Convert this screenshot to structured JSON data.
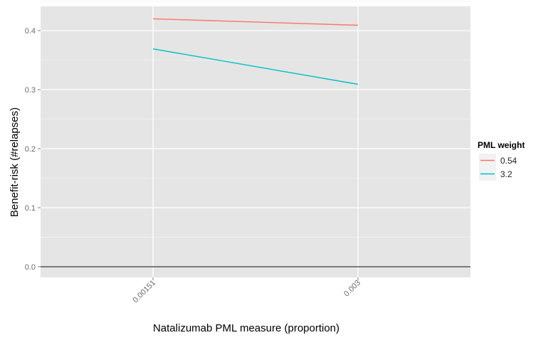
{
  "chart_data": {
    "type": "line",
    "title": "",
    "xlabel": "Natalizumab PML measure (proportion)",
    "ylabel": "Benefit-risk (#relapses)",
    "x_type": "categorical",
    "categories": [
      "0.00151",
      "0.003"
    ],
    "ylim": [
      0,
      0.44
    ],
    "yticks": [
      "0.0",
      "0.1",
      "0.2",
      "0.3",
      "0.4"
    ],
    "grid": true,
    "reference_line_y": 0.0,
    "legend": {
      "title": "PML weight",
      "placement": "right"
    },
    "series": [
      {
        "name": "0.54",
        "values": [
          0.42,
          0.409
        ],
        "color": "#f8766d"
      },
      {
        "name": "3.2",
        "values": [
          0.369,
          0.309
        ],
        "color": "#00bfc4"
      }
    ],
    "colors": {
      "panel_background": "#e5e5e5",
      "grid_major": "#ffffff",
      "grid_minor": "#f2f2f2",
      "zero_line": "#555555",
      "legend_background": "#f2f2f2"
    }
  }
}
